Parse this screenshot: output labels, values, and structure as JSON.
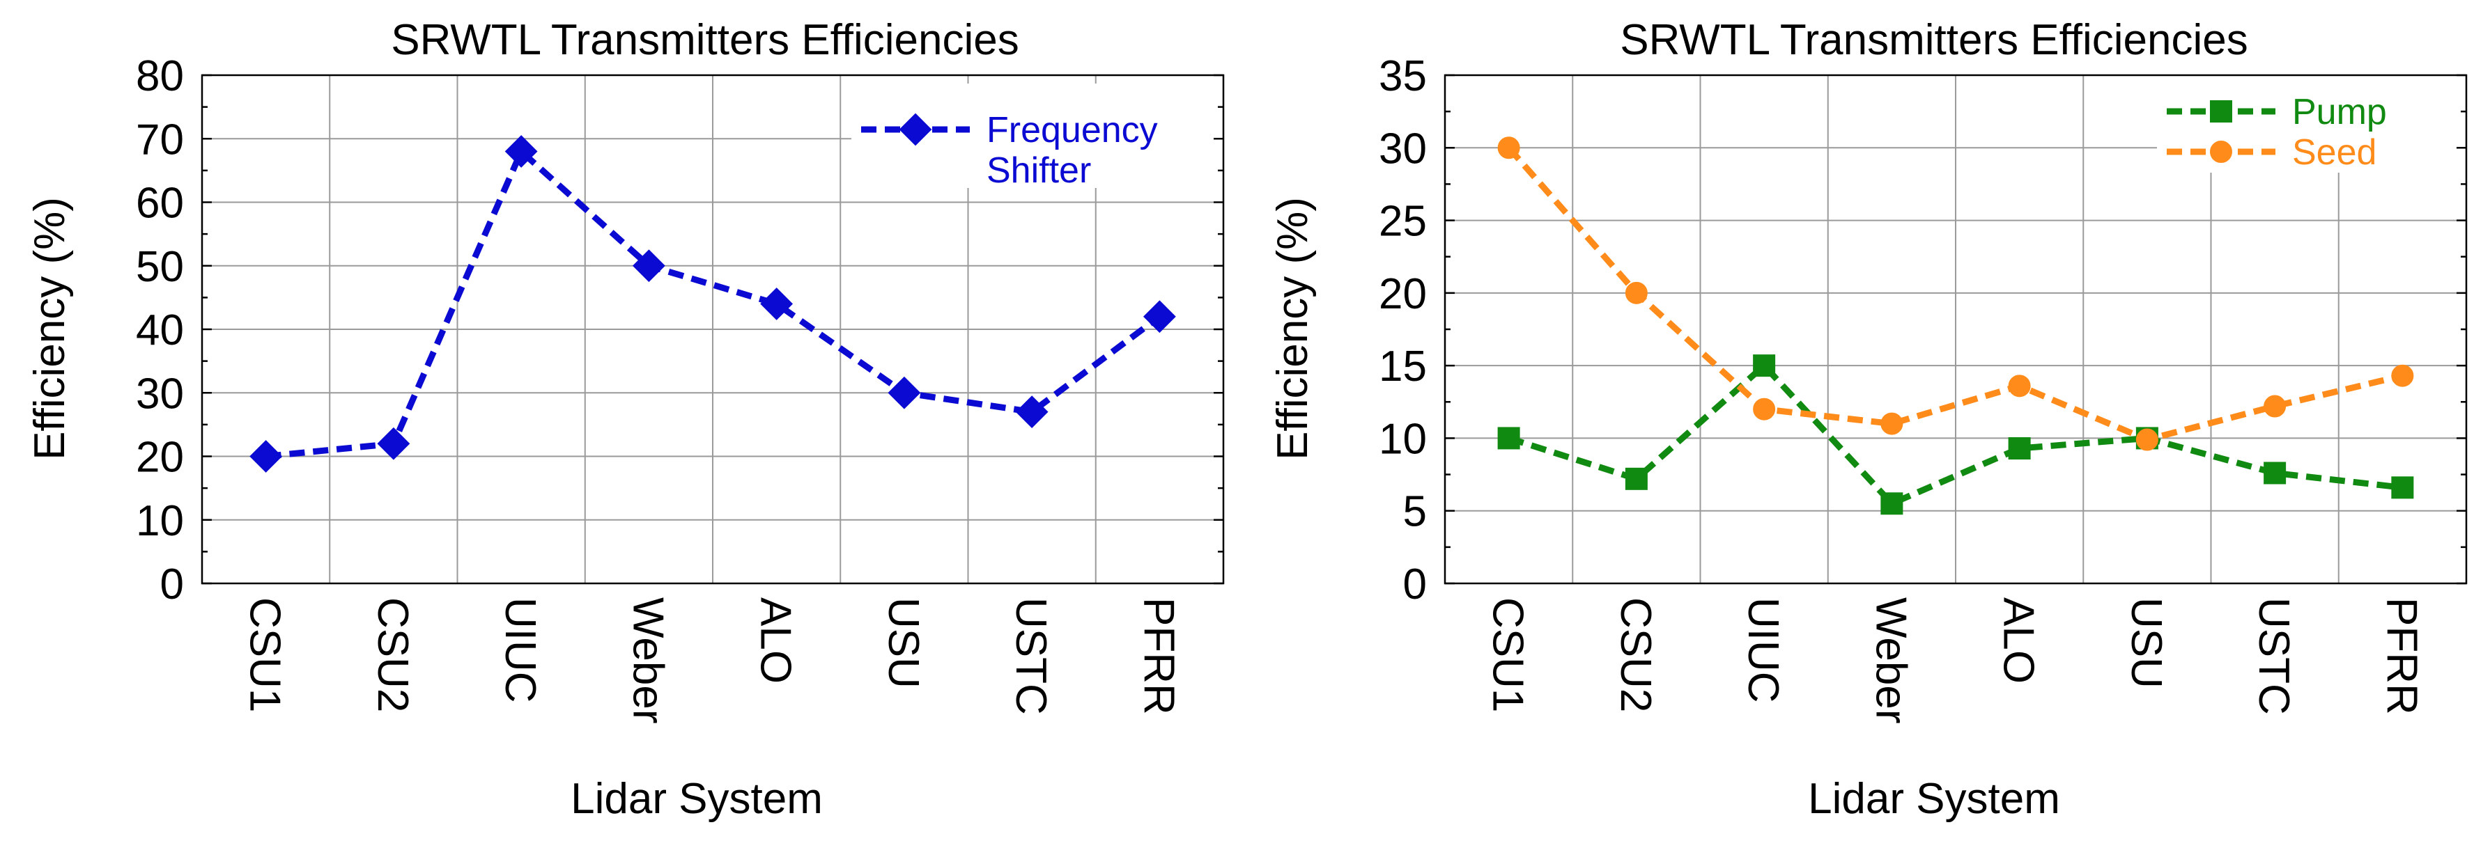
{
  "chart_data": [
    {
      "type": "line",
      "title": "SRWTL Transmitters Efficiencies",
      "xlabel": "Lidar System",
      "ylabel": "Efficiency (%)",
      "categories": [
        "CSU1",
        "CSU2",
        "UIUC",
        "Weber",
        "ALO",
        "USU",
        "USTC",
        "PFRR"
      ],
      "ylim": [
        0,
        80
      ],
      "yticks": [
        0,
        10,
        20,
        30,
        40,
        50,
        60,
        70,
        80
      ],
      "grid": true,
      "legend": "top-right",
      "series": [
        {
          "name": "Frequency Shifter",
          "legend_lines": [
            "Frequency",
            "Shifter"
          ],
          "color": "#0a0ad2",
          "marker": "diamond",
          "values": [
            20,
            22,
            68,
            50,
            44,
            30,
            27,
            42
          ]
        }
      ]
    },
    {
      "type": "line",
      "title": "SRWTL Transmitters Efficiencies",
      "xlabel": "Lidar System",
      "ylabel": "Efficiency (%)",
      "categories": [
        "CSU1",
        "CSU2",
        "UIUC",
        "Weber",
        "ALO",
        "USU",
        "USTC",
        "PFRR"
      ],
      "ylim": [
        0,
        35
      ],
      "yticks": [
        0,
        5,
        10,
        15,
        20,
        25,
        30,
        35
      ],
      "grid": true,
      "legend": "top-right",
      "series": [
        {
          "name": "Pump",
          "legend_lines": [
            "Pump"
          ],
          "color": "#118a11",
          "marker": "square",
          "values": [
            10,
            7.2,
            15,
            5.5,
            9.3,
            10,
            7.6,
            6.6
          ]
        },
        {
          "name": "Seed",
          "legend_lines": [
            "Seed"
          ],
          "color": "#ff8c1a",
          "marker": "circle",
          "values": [
            30,
            20,
            12,
            11,
            13.6,
            9.9,
            12.2,
            14.3
          ]
        }
      ]
    }
  ]
}
